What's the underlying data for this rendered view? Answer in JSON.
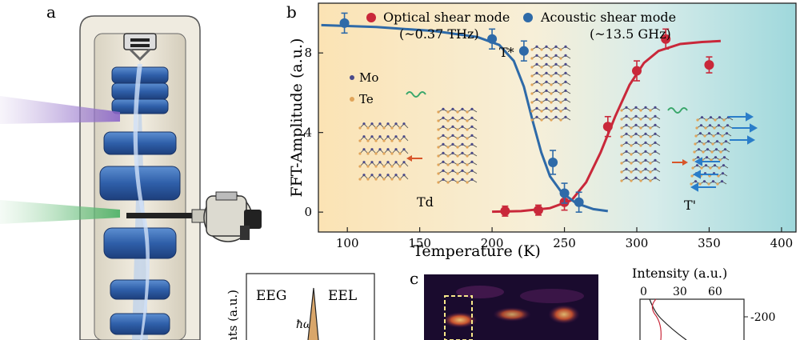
{
  "panels": {
    "a": {
      "label": "a"
    },
    "b": {
      "label": "b"
    },
    "c": {
      "label": "c"
    }
  },
  "chart_data": [
    {
      "type": "scatter",
      "panel": "b",
      "xlabel": "Temperature (K)",
      "ylabel": "FFT-Amplitude (a.u.)",
      "xlim": [
        80,
        410
      ],
      "ylim": [
        -1,
        10.5
      ],
      "xticks": [
        100,
        150,
        200,
        250,
        300,
        350,
        400
      ],
      "yticks": [
        0,
        4,
        8
      ],
      "legend_position": "top",
      "series": [
        {
          "name": "Optical shear mode",
          "subtitle": "(~0.37 THz)",
          "color": "#c9283a",
          "points": [
            {
              "x": 209,
              "y": 0.05,
              "err": 0.25
            },
            {
              "x": 232,
              "y": 0.1,
              "err": 0.25
            },
            {
              "x": 250,
              "y": 0.5,
              "err": 0.4
            },
            {
              "x": 280,
              "y": 4.3,
              "err": 0.5
            },
            {
              "x": 300,
              "y": 7.1,
              "err": 0.5
            },
            {
              "x": 320,
              "y": 8.7,
              "err": 0.5
            },
            {
              "x": 350,
              "y": 7.4,
              "err": 0.4
            }
          ],
          "fit": [
            [
              200,
              0.02
            ],
            [
              220,
              0.05
            ],
            [
              240,
              0.2
            ],
            [
              255,
              0.6
            ],
            [
              265,
              1.5
            ],
            [
              275,
              3.0
            ],
            [
              285,
              4.8
            ],
            [
              295,
              6.4
            ],
            [
              305,
              7.5
            ],
            [
              315,
              8.1
            ],
            [
              330,
              8.45
            ],
            [
              345,
              8.55
            ],
            [
              358,
              8.6
            ]
          ]
        },
        {
          "name": "Acoustic shear mode",
          "subtitle": "(~13.5 GHz)",
          "color": "#2e6aa8",
          "points": [
            {
              "x": 98,
              "y": 9.5,
              "err": 0.5
            },
            {
              "x": 200,
              "y": 8.7,
              "err": 0.5
            },
            {
              "x": 222,
              "y": 8.1,
              "err": 0.5
            },
            {
              "x": 242,
              "y": 2.5,
              "err": 0.6
            },
            {
              "x": 250,
              "y": 0.95,
              "err": 0.5
            },
            {
              "x": 260,
              "y": 0.5,
              "err": 0.5
            }
          ],
          "fit": [
            [
              82,
              9.4
            ],
            [
              120,
              9.3
            ],
            [
              160,
              9.1
            ],
            [
              190,
              8.8
            ],
            [
              205,
              8.4
            ],
            [
              215,
              7.6
            ],
            [
              222,
              6.3
            ],
            [
              228,
              4.6
            ],
            [
              234,
              3.0
            ],
            [
              240,
              1.8
            ],
            [
              248,
              1.0
            ],
            [
              258,
              0.45
            ],
            [
              270,
              0.15
            ],
            [
              280,
              0.05
            ]
          ]
        }
      ],
      "annotations": [
        "T*",
        "Td",
        "T'",
        "Mo",
        "Te"
      ]
    },
    {
      "type": "line",
      "panel": "a-inset",
      "ylabel": "nts (a.u.)",
      "labels": [
        "EEG",
        "EEL",
        "ħω"
      ]
    },
    {
      "type": "line",
      "panel": "c-profile",
      "xlabel": "Intensity (a.u.)",
      "xticks": [
        0,
        30,
        60
      ],
      "yticks": [
        -200
      ]
    }
  ]
}
